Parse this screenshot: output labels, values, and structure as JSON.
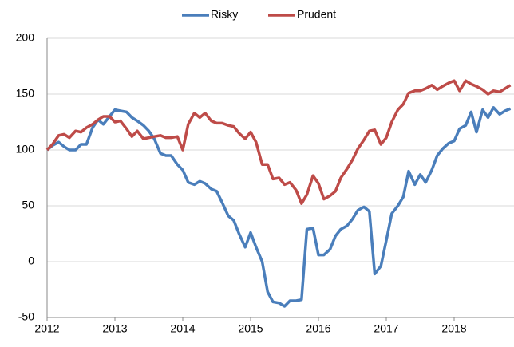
{
  "chart_data": {
    "type": "line",
    "x": [
      2012,
      2012.08,
      2012.17,
      2012.25,
      2012.33,
      2012.42,
      2012.5,
      2012.58,
      2012.67,
      2012.75,
      2012.83,
      2012.92,
      2013,
      2013.08,
      2013.17,
      2013.25,
      2013.33,
      2013.42,
      2013.5,
      2013.58,
      2013.67,
      2013.75,
      2013.83,
      2013.92,
      2014,
      2014.08,
      2014.17,
      2014.25,
      2014.33,
      2014.42,
      2014.5,
      2014.58,
      2014.67,
      2014.75,
      2014.83,
      2014.92,
      2015,
      2015.08,
      2015.17,
      2015.25,
      2015.33,
      2015.42,
      2015.5,
      2015.58,
      2015.67,
      2015.75,
      2015.83,
      2015.92,
      2016,
      2016.08,
      2016.17,
      2016.25,
      2016.33,
      2016.42,
      2016.5,
      2016.58,
      2016.67,
      2016.75,
      2016.83,
      2016.92,
      2017,
      2017.08,
      2017.17,
      2017.25,
      2017.33,
      2017.42,
      2017.5,
      2017.58,
      2017.67,
      2017.75,
      2017.83,
      2017.92,
      2018,
      2018.08,
      2018.17,
      2018.25,
      2018.33,
      2018.42,
      2018.5,
      2018.58,
      2018.67,
      2018.75,
      2018.83
    ],
    "series": [
      {
        "name": "Risky",
        "color": "#4a7ebb",
        "values": [
          100,
          104,
          107,
          103,
          100,
          100,
          105,
          105,
          120,
          127,
          123,
          130,
          136,
          135,
          134,
          129,
          126,
          122,
          117,
          110,
          97,
          95,
          95,
          87,
          82,
          71,
          69,
          72,
          70,
          65,
          63,
          53,
          41,
          37,
          25,
          13,
          26,
          13,
          0,
          -27,
          -36,
          -37,
          -40,
          -35,
          -35,
          -34,
          29,
          30,
          6,
          6,
          11,
          23,
          29,
          32,
          38,
          46,
          49,
          45,
          -11,
          -4,
          19,
          43,
          50,
          58,
          81,
          69,
          78,
          71,
          82,
          95,
          101,
          106,
          108,
          119,
          122,
          134,
          116,
          136,
          129,
          138,
          132,
          135,
          137
        ]
      },
      {
        "name": "Prudent",
        "color": "#be4b48",
        "values": [
          100,
          105,
          113,
          114,
          111,
          117,
          116,
          120,
          123,
          127,
          130,
          130,
          125,
          126,
          119,
          112,
          117,
          110,
          111,
          112,
          113,
          111,
          111,
          112,
          100,
          123,
          133,
          129,
          133,
          126,
          124,
          124,
          122,
          121,
          115,
          110,
          116,
          107,
          87,
          87,
          74,
          75,
          69,
          71,
          64,
          52,
          60,
          77,
          70,
          56,
          59,
          63,
          75,
          83,
          91,
          101,
          109,
          117,
          118,
          105,
          111,
          125,
          136,
          141,
          151,
          153,
          153,
          155,
          158,
          154,
          157,
          160,
          162,
          153,
          162,
          159,
          157,
          154,
          150,
          153,
          152,
          155,
          158
        ]
      }
    ],
    "xlim": [
      2012,
      2018.88
    ],
    "xticks": [
      2012,
      2013,
      2014,
      2015,
      2016,
      2017,
      2018
    ],
    "ylim": [
      -50,
      200
    ],
    "yticks": [
      -50,
      0,
      50,
      100,
      150,
      200
    ],
    "grid": true,
    "legend": "top"
  }
}
